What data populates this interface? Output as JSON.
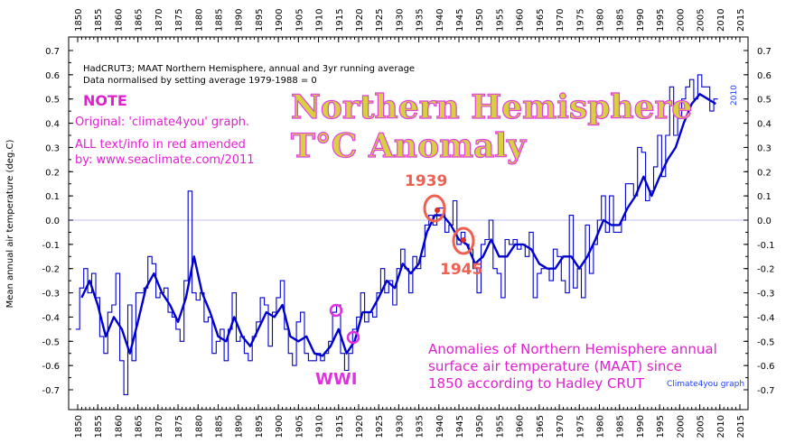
{
  "chart_data": {
    "type": "line",
    "title": "HadCRUT3; MAAT Northern Hemisphere, annual and 3yr running average",
    "subtitle": "Data normalised by setting average 1979-1988 = 0",
    "ylabel": "Mean annual air temperature (deg.C)",
    "xlim": [
      1850,
      2015
    ],
    "ylim": [
      -0.7,
      0.7
    ],
    "x_ticks": [
      1850,
      1855,
      1860,
      1865,
      1870,
      1875,
      1880,
      1885,
      1890,
      1895,
      1900,
      1905,
      1910,
      1915,
      1920,
      1925,
      1930,
      1935,
      1940,
      1945,
      1950,
      1955,
      1960,
      1965,
      1970,
      1975,
      1980,
      1985,
      1990,
      1995,
      2000,
      2005,
      2010,
      2015
    ],
    "y_ticks": [
      0.7,
      0.6,
      0.5,
      0.4,
      0.3,
      0.2,
      0.1,
      0.0,
      -0.1,
      -0.2,
      -0.3,
      -0.4,
      -0.5,
      -0.6,
      -0.7
    ],
    "grid": false,
    "series": [
      {
        "name": "annual",
        "style": "step",
        "color": "#0000cc",
        "x": [
          1850,
          1851,
          1852,
          1853,
          1854,
          1855,
          1856,
          1857,
          1858,
          1859,
          1860,
          1861,
          1862,
          1863,
          1864,
          1865,
          1866,
          1867,
          1868,
          1869,
          1870,
          1871,
          1872,
          1873,
          1874,
          1875,
          1876,
          1877,
          1878,
          1879,
          1880,
          1881,
          1882,
          1883,
          1884,
          1885,
          1886,
          1887,
          1888,
          1889,
          1890,
          1891,
          1892,
          1893,
          1894,
          1895,
          1896,
          1897,
          1898,
          1899,
          1900,
          1901,
          1902,
          1903,
          1904,
          1905,
          1906,
          1907,
          1908,
          1909,
          1910,
          1911,
          1912,
          1913,
          1914,
          1915,
          1916,
          1917,
          1918,
          1919,
          1920,
          1921,
          1922,
          1923,
          1924,
          1925,
          1926,
          1927,
          1928,
          1929,
          1930,
          1931,
          1932,
          1933,
          1934,
          1935,
          1936,
          1937,
          1938,
          1939,
          1940,
          1941,
          1942,
          1943,
          1944,
          1945,
          1946,
          1947,
          1948,
          1949,
          1950,
          1951,
          1952,
          1953,
          1954,
          1955,
          1956,
          1957,
          1958,
          1959,
          1960,
          1961,
          1962,
          1963,
          1964,
          1965,
          1966,
          1967,
          1968,
          1969,
          1970,
          1971,
          1972,
          1973,
          1974,
          1975,
          1976,
          1977,
          1978,
          1979,
          1980,
          1981,
          1982,
          1983,
          1984,
          1985,
          1986,
          1987,
          1988,
          1989,
          1990,
          1991,
          1992,
          1993,
          1994,
          1995,
          1996,
          1997,
          1998,
          1999,
          2000,
          2001,
          2002,
          2003,
          2004,
          2005,
          2006,
          2007,
          2008,
          2009
        ],
        "values": [
          -0.45,
          -0.28,
          -0.2,
          -0.3,
          -0.22,
          -0.32,
          -0.48,
          -0.55,
          -0.38,
          -0.35,
          -0.22,
          -0.58,
          -0.72,
          -0.35,
          -0.58,
          -0.3,
          -0.3,
          -0.28,
          -0.15,
          -0.18,
          -0.32,
          -0.3,
          -0.28,
          -0.38,
          -0.4,
          -0.45,
          -0.5,
          -0.25,
          0.12,
          -0.3,
          -0.33,
          -0.3,
          -0.42,
          -0.4,
          -0.55,
          -0.5,
          -0.45,
          -0.58,
          -0.45,
          -0.3,
          -0.5,
          -0.48,
          -0.55,
          -0.58,
          -0.48,
          -0.42,
          -0.32,
          -0.35,
          -0.52,
          -0.38,
          -0.32,
          -0.25,
          -0.45,
          -0.55,
          -0.6,
          -0.42,
          -0.38,
          -0.55,
          -0.58,
          -0.58,
          -0.55,
          -0.58,
          -0.55,
          -0.5,
          -0.38,
          -0.35,
          -0.55,
          -0.62,
          -0.55,
          -0.45,
          -0.4,
          -0.3,
          -0.42,
          -0.38,
          -0.4,
          -0.3,
          -0.2,
          -0.3,
          -0.25,
          -0.35,
          -0.2,
          -0.12,
          -0.2,
          -0.3,
          -0.15,
          -0.2,
          -0.15,
          -0.02,
          0.02,
          -0.02,
          0.05,
          0.05,
          -0.05,
          -0.02,
          0.08,
          -0.1,
          -0.05,
          -0.1,
          -0.12,
          -0.2,
          -0.3,
          -0.1,
          -0.08,
          0.0,
          -0.2,
          -0.22,
          -0.32,
          -0.08,
          -0.1,
          -0.08,
          -0.12,
          -0.1,
          -0.15,
          -0.05,
          -0.32,
          -0.22,
          -0.2,
          -0.2,
          -0.25,
          -0.12,
          -0.15,
          -0.25,
          -0.3,
          0.02,
          -0.28,
          -0.2,
          -0.32,
          -0.02,
          -0.22,
          -0.1,
          0.0,
          0.1,
          -0.05,
          0.1,
          -0.05,
          -0.05,
          0.0,
          0.15,
          0.15,
          0.1,
          0.3,
          0.28,
          0.08,
          0.12,
          0.22,
          0.35,
          0.18,
          0.35,
          0.55,
          0.35,
          0.42,
          0.5,
          0.55,
          0.58,
          0.5,
          0.6,
          0.55,
          0.55,
          0.45,
          0.5
        ]
      },
      {
        "name": "3yr running average",
        "style": "line",
        "color": "#0000cc",
        "x": [
          1851,
          1853,
          1855,
          1857,
          1859,
          1861,
          1863,
          1865,
          1867,
          1869,
          1871,
          1873,
          1875,
          1877,
          1879,
          1881,
          1883,
          1885,
          1887,
          1889,
          1891,
          1893,
          1895,
          1897,
          1899,
          1901,
          1903,
          1905,
          1907,
          1909,
          1911,
          1913,
          1915,
          1917,
          1919,
          1921,
          1923,
          1925,
          1927,
          1929,
          1931,
          1933,
          1935,
          1937,
          1939,
          1941,
          1943,
          1945,
          1947,
          1949,
          1951,
          1953,
          1955,
          1957,
          1959,
          1961,
          1963,
          1965,
          1967,
          1969,
          1971,
          1973,
          1975,
          1977,
          1979,
          1981,
          1983,
          1985,
          1987,
          1989,
          1991,
          1993,
          1995,
          1997,
          1999,
          2001,
          2003,
          2005,
          2007,
          2009
        ],
        "values": [
          -0.32,
          -0.25,
          -0.35,
          -0.48,
          -0.4,
          -0.45,
          -0.55,
          -0.42,
          -0.28,
          -0.22,
          -0.3,
          -0.35,
          -0.42,
          -0.32,
          -0.15,
          -0.3,
          -0.38,
          -0.48,
          -0.5,
          -0.4,
          -0.48,
          -0.52,
          -0.45,
          -0.38,
          -0.4,
          -0.35,
          -0.48,
          -0.5,
          -0.48,
          -0.55,
          -0.56,
          -0.52,
          -0.45,
          -0.55,
          -0.5,
          -0.38,
          -0.38,
          -0.32,
          -0.25,
          -0.28,
          -0.18,
          -0.22,
          -0.18,
          -0.05,
          0.02,
          0.02,
          -0.02,
          -0.08,
          -0.1,
          -0.18,
          -0.15,
          -0.08,
          -0.15,
          -0.15,
          -0.1,
          -0.1,
          -0.12,
          -0.18,
          -0.2,
          -0.2,
          -0.15,
          -0.15,
          -0.2,
          -0.15,
          -0.08,
          0.0,
          -0.02,
          -0.02,
          0.05,
          0.1,
          0.18,
          0.1,
          0.18,
          0.25,
          0.3,
          0.4,
          0.48,
          0.52,
          0.5,
          0.48
        ]
      }
    ]
  },
  "text": {
    "source_line1": "HadCRUT3; MAAT Northern Hemisphere, annual and 3yr running average",
    "source_line2": "Data normalised by setting average 1979-1988 = 0",
    "note_title": "NOTE",
    "note_line1": "Original: 'climate4you' graph.",
    "note_line2": "ALL text/info in red amended",
    "note_line3": "by: www.seaclimate.com/2011",
    "big_title_line1": "Northern Hemisphere",
    "big_title_line2": "T°C Anomaly",
    "label_1939": "1939",
    "label_1945": "1945",
    "label_wwi": "WWI",
    "bottom_line1": "Anomalies of Northern Hemisphere annual",
    "bottom_line2": "surface air temperature (MAAT) since",
    "bottom_line3": "1850 according to Hadley CRUT",
    "credit": "Climate4you graph",
    "year_2010": "2010"
  },
  "colors": {
    "series": "#0000cc",
    "annotation_red": "#f06050",
    "annotation_magenta": "#e020d0",
    "title_fill": "#d8d040"
  }
}
